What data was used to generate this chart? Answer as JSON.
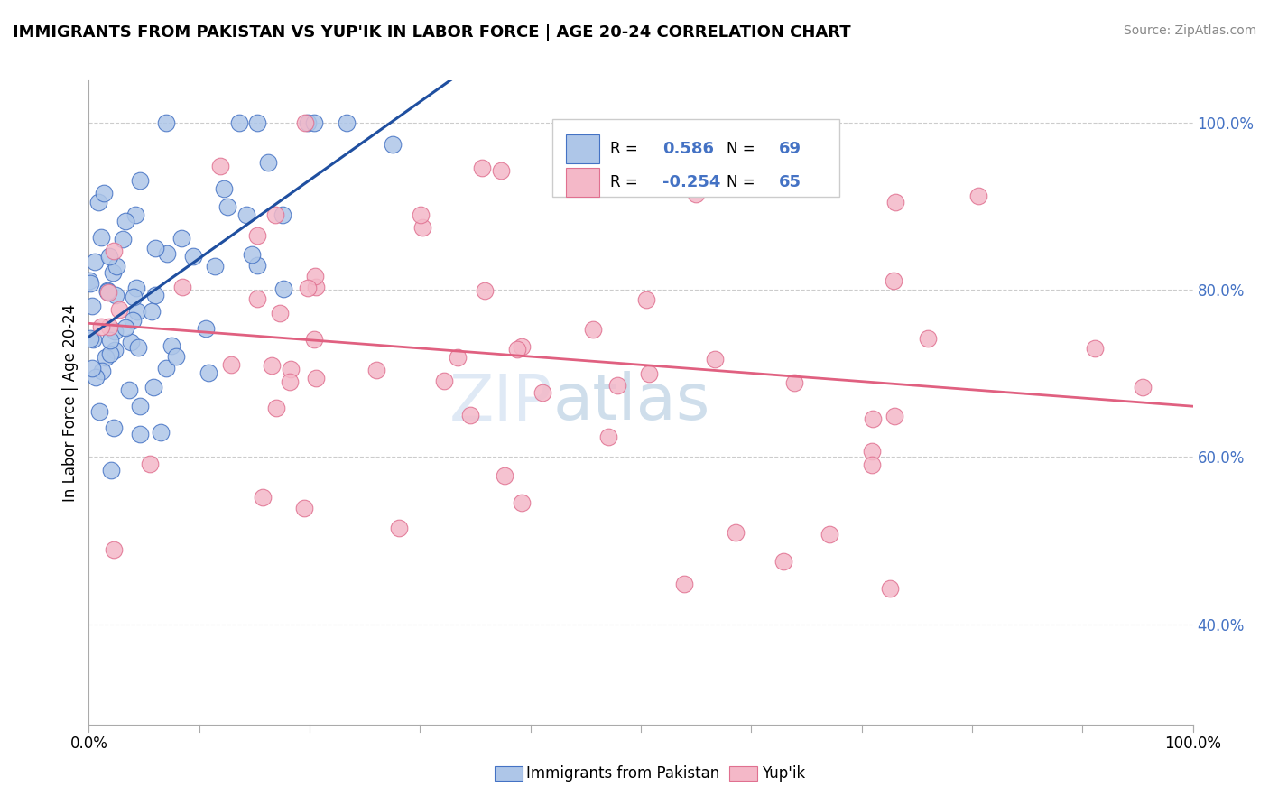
{
  "title": "IMMIGRANTS FROM PAKISTAN VS YUP'IK IN LABOR FORCE | AGE 20-24 CORRELATION CHART",
  "source": "Source: ZipAtlas.com",
  "ylabel": "In Labor Force | Age 20-24",
  "pakistan_R": "0.586",
  "pakistan_N": "69",
  "yupik_R": "-0.254",
  "yupik_N": "65",
  "pakistan_color": "#aec6e8",
  "pakistan_edge_color": "#4472c4",
  "pakistan_line_color": "#1f4fa0",
  "yupik_color": "#f4b8c8",
  "yupik_edge_color": "#e07090",
  "yupik_line_color": "#e06080",
  "watermark_zip": "ZIP",
  "watermark_atlas": "atlas",
  "legend_labels": [
    "Immigrants from Pakistan",
    "Yup'ik"
  ],
  "xlim": [
    0.0,
    1.0
  ],
  "ylim": [
    0.28,
    1.05
  ],
  "yticks": [
    1.0,
    0.8,
    0.6,
    0.4
  ],
  "ytick_labels": [
    "100.0%",
    "80.0%",
    "60.0%",
    "40.0%"
  ],
  "xtick_labels": [
    "0.0%",
    "100.0%"
  ],
  "grid_color": "#cccccc",
  "pak_seed": 42,
  "yup_seed": 7
}
